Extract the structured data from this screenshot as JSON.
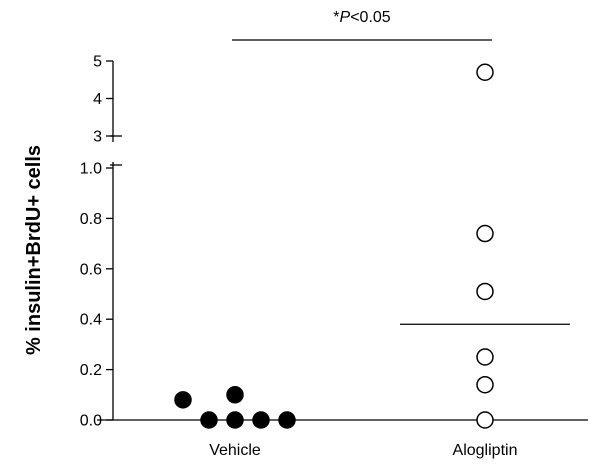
{
  "chart_data": {
    "type": "scatter",
    "ylabel": "% insulin+BrdU+ cells",
    "categories": [
      "Vehicle",
      "Alogliptin"
    ],
    "y_axis": {
      "lower_segment": {
        "range": [
          0.0,
          1.0
        ],
        "ticks": [
          "0.0",
          "0.2",
          "0.4",
          "0.6",
          "0.8",
          "1.0"
        ]
      },
      "upper_segment": {
        "range": [
          3,
          5
        ],
        "ticks": [
          "3",
          "4",
          "5"
        ]
      },
      "broken": true
    },
    "series": [
      {
        "category": "Vehicle",
        "marker": "filled-circle",
        "points": [
          {
            "offset": -2,
            "y": 0.08
          },
          {
            "offset": -1,
            "y": 0.0
          },
          {
            "offset": 0,
            "y": 0.0
          },
          {
            "offset": 0,
            "y": 0.1
          },
          {
            "offset": 1,
            "y": 0.0
          },
          {
            "offset": 2,
            "y": 0.0
          }
        ]
      },
      {
        "category": "Alogliptin",
        "marker": "open-circle",
        "points": [
          {
            "offset": 0,
            "y": 0.0
          },
          {
            "offset": 0,
            "y": 0.14
          },
          {
            "offset": 0,
            "y": 0.25
          },
          {
            "offset": 0,
            "y": 0.51
          },
          {
            "offset": 0,
            "y": 0.74
          },
          {
            "offset": 0,
            "y": 4.7
          }
        ]
      }
    ],
    "means": [
      {
        "category": "Alogliptin",
        "value": 0.38
      }
    ],
    "annotation": {
      "prefix": "*",
      "p_symbol": "P",
      "relation": "<0.05"
    },
    "colors": {
      "marker": "#000000",
      "axis": "#000000"
    },
    "grid": false
  }
}
